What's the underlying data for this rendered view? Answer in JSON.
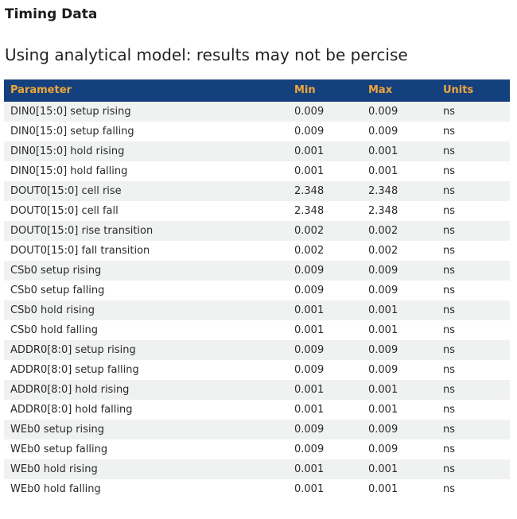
{
  "page": {
    "title": "Timing Data",
    "subtitle": "Using analytical model: results may not be percise"
  },
  "table": {
    "columns": [
      "Parameter",
      "Min",
      "Max",
      "Units"
    ],
    "rows": [
      {
        "parameter": "DIN0[15:0] setup rising",
        "min": "0.009",
        "max": "0.009",
        "units": "ns"
      },
      {
        "parameter": "DIN0[15:0] setup falling",
        "min": "0.009",
        "max": "0.009",
        "units": "ns"
      },
      {
        "parameter": "DIN0[15:0] hold rising",
        "min": "0.001",
        "max": "0.001",
        "units": "ns"
      },
      {
        "parameter": "DIN0[15:0] hold falling",
        "min": "0.001",
        "max": "0.001",
        "units": "ns"
      },
      {
        "parameter": "DOUT0[15:0] cell rise",
        "min": "2.348",
        "max": "2.348",
        "units": "ns"
      },
      {
        "parameter": "DOUT0[15:0] cell fall",
        "min": "2.348",
        "max": "2.348",
        "units": "ns"
      },
      {
        "parameter": "DOUT0[15:0] rise transition",
        "min": "0.002",
        "max": "0.002",
        "units": "ns"
      },
      {
        "parameter": "DOUT0[15:0] fall transition",
        "min": "0.002",
        "max": "0.002",
        "units": "ns"
      },
      {
        "parameter": "CSb0 setup rising",
        "min": "0.009",
        "max": "0.009",
        "units": "ns"
      },
      {
        "parameter": "CSb0 setup falling",
        "min": "0.009",
        "max": "0.009",
        "units": "ns"
      },
      {
        "parameter": "CSb0 hold rising",
        "min": "0.001",
        "max": "0.001",
        "units": "ns"
      },
      {
        "parameter": "CSb0 hold falling",
        "min": "0.001",
        "max": "0.001",
        "units": "ns"
      },
      {
        "parameter": "ADDR0[8:0] setup rising",
        "min": "0.009",
        "max": "0.009",
        "units": "ns"
      },
      {
        "parameter": "ADDR0[8:0] setup falling",
        "min": "0.009",
        "max": "0.009",
        "units": "ns"
      },
      {
        "parameter": "ADDR0[8:0] hold rising",
        "min": "0.001",
        "max": "0.001",
        "units": "ns"
      },
      {
        "parameter": "ADDR0[8:0] hold falling",
        "min": "0.001",
        "max": "0.001",
        "units": "ns"
      },
      {
        "parameter": "WEb0 setup rising",
        "min": "0.009",
        "max": "0.009",
        "units": "ns"
      },
      {
        "parameter": "WEb0 setup falling",
        "min": "0.009",
        "max": "0.009",
        "units": "ns"
      },
      {
        "parameter": "WEb0 hold rising",
        "min": "0.001",
        "max": "0.001",
        "units": "ns"
      },
      {
        "parameter": "WEb0 hold falling",
        "min": "0.001",
        "max": "0.001",
        "units": "ns"
      }
    ]
  },
  "colors": {
    "header_bg": "#14417d",
    "header_text": "#f0a63a",
    "row_alt_bg": "#f0f2f1",
    "row_text": "#2a2a2a"
  }
}
